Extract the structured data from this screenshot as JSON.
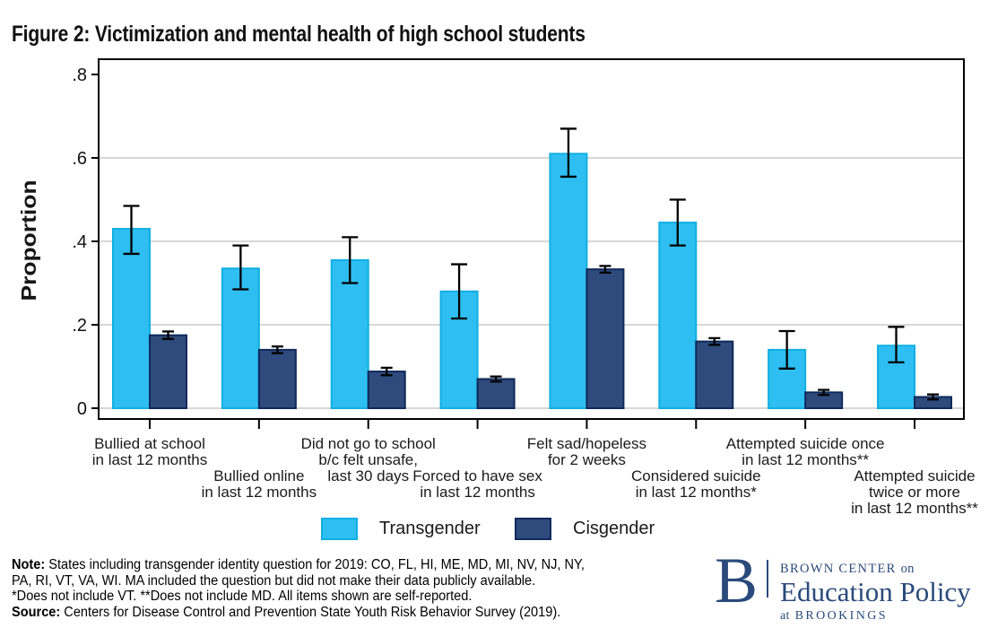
{
  "title": "Figure 2: Victimization and mental health of high school students",
  "colors": {
    "transgender": "#2EBEF2",
    "transgender_border": "#10AFE3",
    "cisgender": "#2F4A7C",
    "cisgender_border": "#0E2A5A",
    "grid": "#D8D8D8",
    "frame": "#000000",
    "logo_navy": "#2A4A7B"
  },
  "chart_data": {
    "type": "bar",
    "title": "Figure 2: Victimization and mental health of high school students",
    "xlabel": "",
    "ylabel": "Proportion",
    "ylim": [
      0,
      0.8
    ],
    "ytick_values": [
      0,
      0.2,
      0.4,
      0.6,
      0.8
    ],
    "ytick_labels": [
      "0",
      ".2",
      ".4",
      ".6",
      ".8"
    ],
    "grid_values": [
      0,
      0.2,
      0.4,
      0.6
    ],
    "grid": true,
    "legend_position": "bottom",
    "error_bars": true,
    "categories": [
      {
        "row": "upper",
        "lines": [
          "Bullied at school",
          "in last 12 months"
        ]
      },
      {
        "row": "lower",
        "lines": [
          "Bullied online",
          "in last 12 months"
        ]
      },
      {
        "row": "upper",
        "lines": [
          "Did not go to school",
          "b/c felt unsafe,",
          "last 30 days"
        ]
      },
      {
        "row": "lower",
        "lines": [
          "Forced to have sex",
          "in last 12 months"
        ]
      },
      {
        "row": "upper",
        "lines": [
          "Felt sad/hopeless",
          "for 2 weeks"
        ]
      },
      {
        "row": "lower",
        "lines": [
          "Considered suicide",
          "in last 12 months*"
        ]
      },
      {
        "row": "upper",
        "lines": [
          "Attempted suicide once",
          "in last 12 months**"
        ]
      },
      {
        "row": "lower",
        "lines": [
          "Attempted suicide",
          "twice or more",
          "in last 12 months**"
        ]
      }
    ],
    "series": [
      {
        "name": "Transgender",
        "fill": "#2EBEF2",
        "border": "#10AFE3",
        "values": [
          0.43,
          0.335,
          0.355,
          0.28,
          0.61,
          0.445,
          0.14,
          0.15
        ],
        "ci_low": [
          0.37,
          0.285,
          0.3,
          0.215,
          0.555,
          0.39,
          0.095,
          0.11
        ],
        "ci_high": [
          0.485,
          0.39,
          0.41,
          0.345,
          0.67,
          0.5,
          0.185,
          0.195
        ]
      },
      {
        "name": "Cisgender",
        "fill": "#2F4A7C",
        "border": "#0E2A5A",
        "values": [
          0.175,
          0.14,
          0.088,
          0.07,
          0.333,
          0.16,
          0.038,
          0.027
        ],
        "ci_low": [
          0.166,
          0.132,
          0.079,
          0.064,
          0.325,
          0.152,
          0.032,
          0.021
        ],
        "ci_high": [
          0.184,
          0.148,
          0.097,
          0.076,
          0.341,
          0.168,
          0.044,
          0.033
        ]
      }
    ]
  },
  "notes": {
    "lines": [
      {
        "lead": "Note:",
        "text": " States including transgender identity question for 2019: CO, FL, HI, ME, MD, MI, NV, NJ, NY,"
      },
      {
        "lead": "",
        "text": "PA, RI, VT, VA, WI. MA included the question but did not make their data publicly available."
      },
      {
        "lead": "",
        "text": "*Does not include VT. **Does not include MD. All items shown are self-reported."
      },
      {
        "lead": "Source:",
        "text": " Centers for Disease Control and Prevention State Youth Risk Behavior Survey (2019)."
      }
    ]
  },
  "logo": {
    "monogram": "B",
    "line1": "BROWN CENTER",
    "line1_suffix": "on",
    "line2": "Education Policy",
    "line3_prefix": "at",
    "line3": "BROOKINGS"
  }
}
